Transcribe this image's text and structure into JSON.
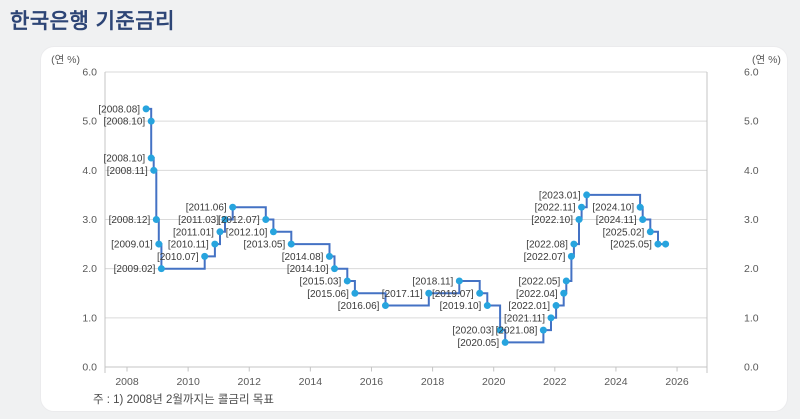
{
  "page": {
    "title": "한국은행 기준금리",
    "note": "주 : 1) 2008년 2월까지는 콜금리 목표"
  },
  "chart_data": {
    "type": "line",
    "line_style": "step",
    "title": "한국은행 기준금리",
    "unit_label_left": "(연 %)",
    "unit_label_right": "(연 %)",
    "xlabel": "",
    "ylabel": "연 %",
    "ylim": [
      0,
      6
    ],
    "yticks": [
      0,
      1,
      2,
      3,
      4,
      5,
      6
    ],
    "ytick_labels": [
      "0.0",
      "1.0",
      "2.0",
      "3.0",
      "4.0",
      "5.0",
      "6.0"
    ],
    "xlim": [
      2007.28,
      2026.98
    ],
    "xticks": [
      2008,
      2010,
      2012,
      2014,
      2016,
      2018,
      2020,
      2022,
      2024,
      2026
    ],
    "grid": "horizontal",
    "legend": "none",
    "series_name": "기준금리",
    "label_format": "[{period}]",
    "points": [
      {
        "period": "2008.08",
        "value": 5.25
      },
      {
        "period": "2008.10",
        "value": 5.0
      },
      {
        "period": "2008.10",
        "value": 4.25
      },
      {
        "period": "2008.11",
        "value": 4.0
      },
      {
        "period": "2008.12",
        "value": 3.0
      },
      {
        "period": "2009.01",
        "value": 2.5
      },
      {
        "period": "2009.02",
        "value": 2.0
      },
      {
        "period": "2010.07",
        "value": 2.25
      },
      {
        "period": "2010.11",
        "value": 2.5
      },
      {
        "period": "2011.01",
        "value": 2.75
      },
      {
        "period": "2011.03",
        "value": 3.0
      },
      {
        "period": "2011.06",
        "value": 3.25
      },
      {
        "period": "2012.07",
        "value": 3.0
      },
      {
        "period": "2012.10",
        "value": 2.75
      },
      {
        "period": "2013.05",
        "value": 2.5
      },
      {
        "period": "2014.08",
        "value": 2.25
      },
      {
        "period": "2014.10",
        "value": 2.0
      },
      {
        "period": "2015.03",
        "value": 1.75
      },
      {
        "period": "2015.06",
        "value": 1.5
      },
      {
        "period": "2016.06",
        "value": 1.25
      },
      {
        "period": "2017.11",
        "value": 1.5
      },
      {
        "period": "2018.11",
        "value": 1.75
      },
      {
        "period": "2019.07",
        "value": 1.5
      },
      {
        "period": "2019.10",
        "value": 1.25
      },
      {
        "period": "2020.03",
        "value": 0.75
      },
      {
        "period": "2020.05",
        "value": 0.5
      },
      {
        "period": "2021.08",
        "value": 0.75
      },
      {
        "period": "2021.11",
        "value": 1.0
      },
      {
        "period": "2022.01",
        "value": 1.25
      },
      {
        "period": "2022.04",
        "value": 1.5
      },
      {
        "period": "2022.05",
        "value": 1.75
      },
      {
        "period": "2022.07",
        "value": 2.25
      },
      {
        "period": "2022.08",
        "value": 2.5
      },
      {
        "period": "2022.10",
        "value": 3.0
      },
      {
        "period": "2022.11",
        "value": 3.25
      },
      {
        "period": "2023.01",
        "value": 3.5
      },
      {
        "period": "2024.10",
        "value": 3.25
      },
      {
        "period": "2024.11",
        "value": 3.0
      },
      {
        "period": "2025.02",
        "value": 2.75
      },
      {
        "period": "2025.05",
        "value": 2.5
      },
      {
        "period": "",
        "value": 2.5
      }
    ],
    "colors": {
      "line": "#4472c4",
      "marker": "#27a4de",
      "grid": "#dadada",
      "axis": "#c4c4c4",
      "tick_text": "#595959",
      "point_label": "#3a3a3a",
      "title": "#2d4576"
    }
  }
}
